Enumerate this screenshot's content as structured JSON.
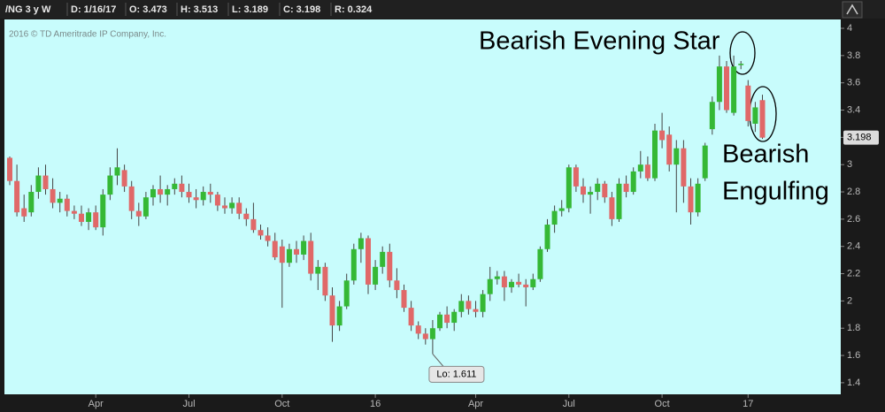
{
  "chart_data": {
    "type": "candlestick",
    "symbol": "/NG 3 y W",
    "fields": [
      "D: 1/16/17",
      "O: 3.473",
      "H: 3.513",
      "L: 3.189",
      "C: 3.198",
      "R: 0.324"
    ],
    "copyright": "2016 © TD Ameritrade IP Company, Inc.",
    "annotations": [
      "Bearish Evening Star",
      "Bearish",
      "Engulfing"
    ],
    "last_price": 3.198,
    "low_marker": {
      "value": 1.611,
      "label": "Lo: 1.611"
    },
    "up_color": "#35b835",
    "down_color": "#e06868",
    "ylim": [
      1.315,
      4.065
    ],
    "yticks": [
      1.4,
      1.6,
      1.8,
      2,
      2.2,
      2.4,
      2.6,
      2.8,
      3,
      3.2,
      3.4,
      3.6,
      3.8,
      4
    ],
    "categories": [
      null,
      null,
      null,
      null,
      null,
      null,
      null,
      null,
      null,
      null,
      null,
      null,
      "Apr",
      null,
      null,
      null,
      null,
      null,
      null,
      null,
      null,
      null,
      null,
      null,
      null,
      "Jul",
      null,
      null,
      null,
      null,
      null,
      null,
      null,
      null,
      null,
      null,
      null,
      null,
      "Oct",
      null,
      null,
      null,
      null,
      null,
      null,
      null,
      null,
      null,
      null,
      null,
      null,
      "16",
      null,
      null,
      null,
      null,
      null,
      null,
      null,
      null,
      null,
      null,
      null,
      null,
      null,
      "Apr",
      null,
      null,
      null,
      null,
      null,
      null,
      null,
      null,
      null,
      null,
      null,
      null,
      "Jul",
      null,
      null,
      null,
      null,
      null,
      null,
      null,
      null,
      null,
      null,
      null,
      null,
      "Oct",
      null,
      null,
      null,
      null,
      null,
      null,
      null,
      null,
      null,
      null,
      null,
      "17",
      null,
      null
    ],
    "open": [
      3.05,
      2.88,
      2.68,
      2.65,
      2.8,
      2.92,
      2.82,
      2.72,
      2.75,
      2.66,
      2.64,
      2.58,
      2.65,
      2.54,
      2.78,
      2.92,
      2.96,
      2.84,
      2.66,
      2.62,
      2.76,
      2.82,
      2.78,
      2.82,
      2.86,
      2.8,
      2.76,
      2.74,
      2.8,
      2.78,
      2.7,
      2.68,
      2.72,
      2.64,
      2.6,
      2.52,
      2.48,
      2.44,
      2.4,
      2.28,
      2.38,
      2.34,
      2.44,
      2.2,
      2.25,
      2.04,
      1.82,
      1.96,
      2.15,
      2.38,
      2.46,
      2.12,
      2.25,
      2.36,
      2.15,
      2.08,
      1.95,
      1.82,
      1.76,
      1.72,
      1.8,
      1.9,
      1.84,
      1.92,
      2.0,
      1.94,
      1.92,
      2.05,
      2.16,
      2.18,
      2.1,
      2.14,
      2.12,
      2.1,
      2.16,
      2.38,
      2.56,
      2.66,
      2.68,
      2.98,
      2.84,
      2.78,
      2.8,
      2.86,
      2.76,
      2.6,
      2.86,
      2.8,
      2.95,
      3.0,
      2.9,
      3.25,
      3.22,
      3.0,
      3.12,
      2.84,
      2.65,
      2.9,
      3.26,
      3.46,
      3.72,
      3.38,
      3.73,
      3.58,
      3.3,
      3.473
    ],
    "high": [
      3.06,
      3.0,
      2.78,
      2.85,
      2.98,
      3.0,
      2.9,
      2.8,
      2.78,
      2.7,
      2.7,
      2.68,
      2.7,
      2.82,
      2.98,
      3.12,
      3.0,
      2.88,
      2.72,
      2.8,
      2.85,
      2.92,
      2.85,
      2.9,
      2.92,
      2.86,
      2.82,
      2.84,
      2.86,
      2.8,
      2.76,
      2.76,
      2.76,
      2.68,
      2.72,
      2.56,
      2.54,
      2.5,
      2.45,
      2.42,
      2.44,
      2.48,
      2.5,
      2.3,
      2.28,
      2.1,
      2.0,
      2.2,
      2.42,
      2.5,
      2.48,
      2.3,
      2.4,
      2.42,
      2.24,
      2.12,
      2.0,
      1.85,
      1.8,
      1.86,
      1.92,
      1.96,
      1.94,
      2.05,
      2.04,
      2.0,
      2.08,
      2.25,
      2.22,
      2.22,
      2.16,
      2.2,
      2.16,
      2.2,
      2.4,
      2.6,
      2.7,
      2.74,
      3.0,
      3.0,
      2.9,
      2.84,
      2.9,
      2.88,
      2.8,
      2.9,
      2.92,
      2.98,
      3.1,
      3.06,
      3.3,
      3.38,
      3.28,
      3.18,
      3.18,
      2.9,
      2.9,
      3.16,
      3.5,
      3.8,
      3.76,
      3.8,
      3.76,
      3.62,
      3.46,
      3.513
    ],
    "low": [
      2.85,
      2.62,
      2.58,
      2.62,
      2.75,
      2.78,
      2.68,
      2.65,
      2.62,
      2.6,
      2.55,
      2.52,
      2.52,
      2.48,
      2.74,
      2.85,
      2.8,
      2.6,
      2.55,
      2.6,
      2.7,
      2.72,
      2.7,
      2.78,
      2.76,
      2.72,
      2.68,
      2.7,
      2.72,
      2.66,
      2.64,
      2.64,
      2.6,
      2.55,
      2.5,
      2.45,
      2.4,
      2.3,
      1.95,
      2.25,
      2.28,
      2.3,
      2.15,
      2.08,
      2.0,
      1.7,
      1.78,
      1.94,
      2.12,
      2.28,
      2.05,
      2.08,
      2.2,
      2.1,
      2.02,
      1.92,
      1.78,
      1.72,
      1.68,
      1.611,
      1.78,
      1.8,
      1.78,
      1.88,
      1.9,
      1.88,
      1.88,
      2.0,
      2.12,
      2.0,
      2.06,
      2.1,
      1.96,
      2.08,
      2.14,
      2.36,
      2.5,
      2.62,
      2.65,
      2.8,
      2.72,
      2.64,
      2.74,
      2.72,
      2.55,
      2.58,
      2.76,
      2.78,
      2.9,
      2.88,
      2.88,
      3.12,
      2.95,
      2.65,
      2.72,
      2.56,
      2.62,
      2.88,
      3.22,
      3.4,
      3.38,
      3.36,
      3.7,
      3.28,
      3.24,
      3.189
    ],
    "close": [
      2.88,
      2.65,
      2.62,
      2.8,
      2.92,
      2.82,
      2.72,
      2.75,
      2.66,
      2.64,
      2.58,
      2.65,
      2.54,
      2.78,
      2.92,
      2.98,
      2.84,
      2.66,
      2.62,
      2.76,
      2.82,
      2.78,
      2.82,
      2.86,
      2.8,
      2.76,
      2.74,
      2.8,
      2.78,
      2.7,
      2.68,
      2.72,
      2.64,
      2.6,
      2.52,
      2.48,
      2.44,
      2.32,
      2.28,
      2.38,
      2.34,
      2.44,
      2.2,
      2.25,
      2.04,
      1.82,
      1.96,
      2.15,
      2.38,
      2.46,
      2.12,
      2.25,
      2.36,
      2.15,
      2.08,
      1.95,
      1.82,
      1.76,
      1.72,
      1.8,
      1.9,
      1.84,
      1.92,
      2.0,
      1.94,
      1.92,
      2.05,
      2.16,
      2.18,
      2.1,
      2.14,
      2.12,
      2.1,
      2.16,
      2.38,
      2.56,
      2.66,
      2.68,
      2.98,
      2.84,
      2.78,
      2.8,
      2.86,
      2.76,
      2.6,
      2.86,
      2.8,
      2.95,
      3.0,
      2.9,
      3.25,
      3.18,
      3.0,
      3.12,
      2.84,
      2.65,
      2.86,
      3.14,
      3.46,
      3.72,
      3.4,
      3.72,
      3.74,
      3.32,
      3.42,
      3.198
    ]
  }
}
